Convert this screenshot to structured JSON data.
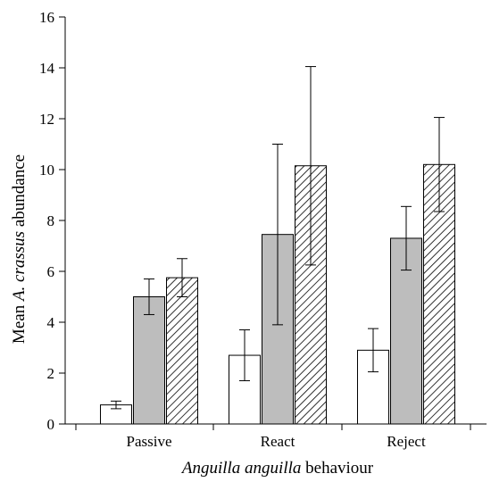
{
  "chart_data": {
    "type": "bar",
    "categories": [
      "Passive",
      "React",
      "Reject"
    ],
    "series": [
      {
        "pattern": "white",
        "values": [
          0.75,
          2.7,
          2.9
        ],
        "errors": [
          0.15,
          1.0,
          0.85
        ]
      },
      {
        "pattern": "gray",
        "values": [
          5.0,
          7.45,
          7.3
        ],
        "errors": [
          0.7,
          3.55,
          1.25
        ]
      },
      {
        "pattern": "hatched",
        "values": [
          5.75,
          10.15,
          10.2
        ],
        "errors": [
          0.75,
          3.9,
          1.85
        ]
      }
    ],
    "ylim": [
      0,
      16
    ],
    "yticks": [
      "0",
      "2",
      "4",
      "6",
      "8",
      "10",
      "12",
      "14",
      "16"
    ],
    "ylabel_parts": [
      "Mean ",
      "A. crassus",
      " abundance"
    ],
    "xlabel_parts": [
      "Anguilla anguilla",
      " behaviour"
    ],
    "grid": false,
    "legend": "none"
  },
  "colors": {
    "white_fill": "#ffffff",
    "gray_fill": "#bdbdbd",
    "hatch_fill": "#ffffff",
    "stroke": "#000000"
  }
}
